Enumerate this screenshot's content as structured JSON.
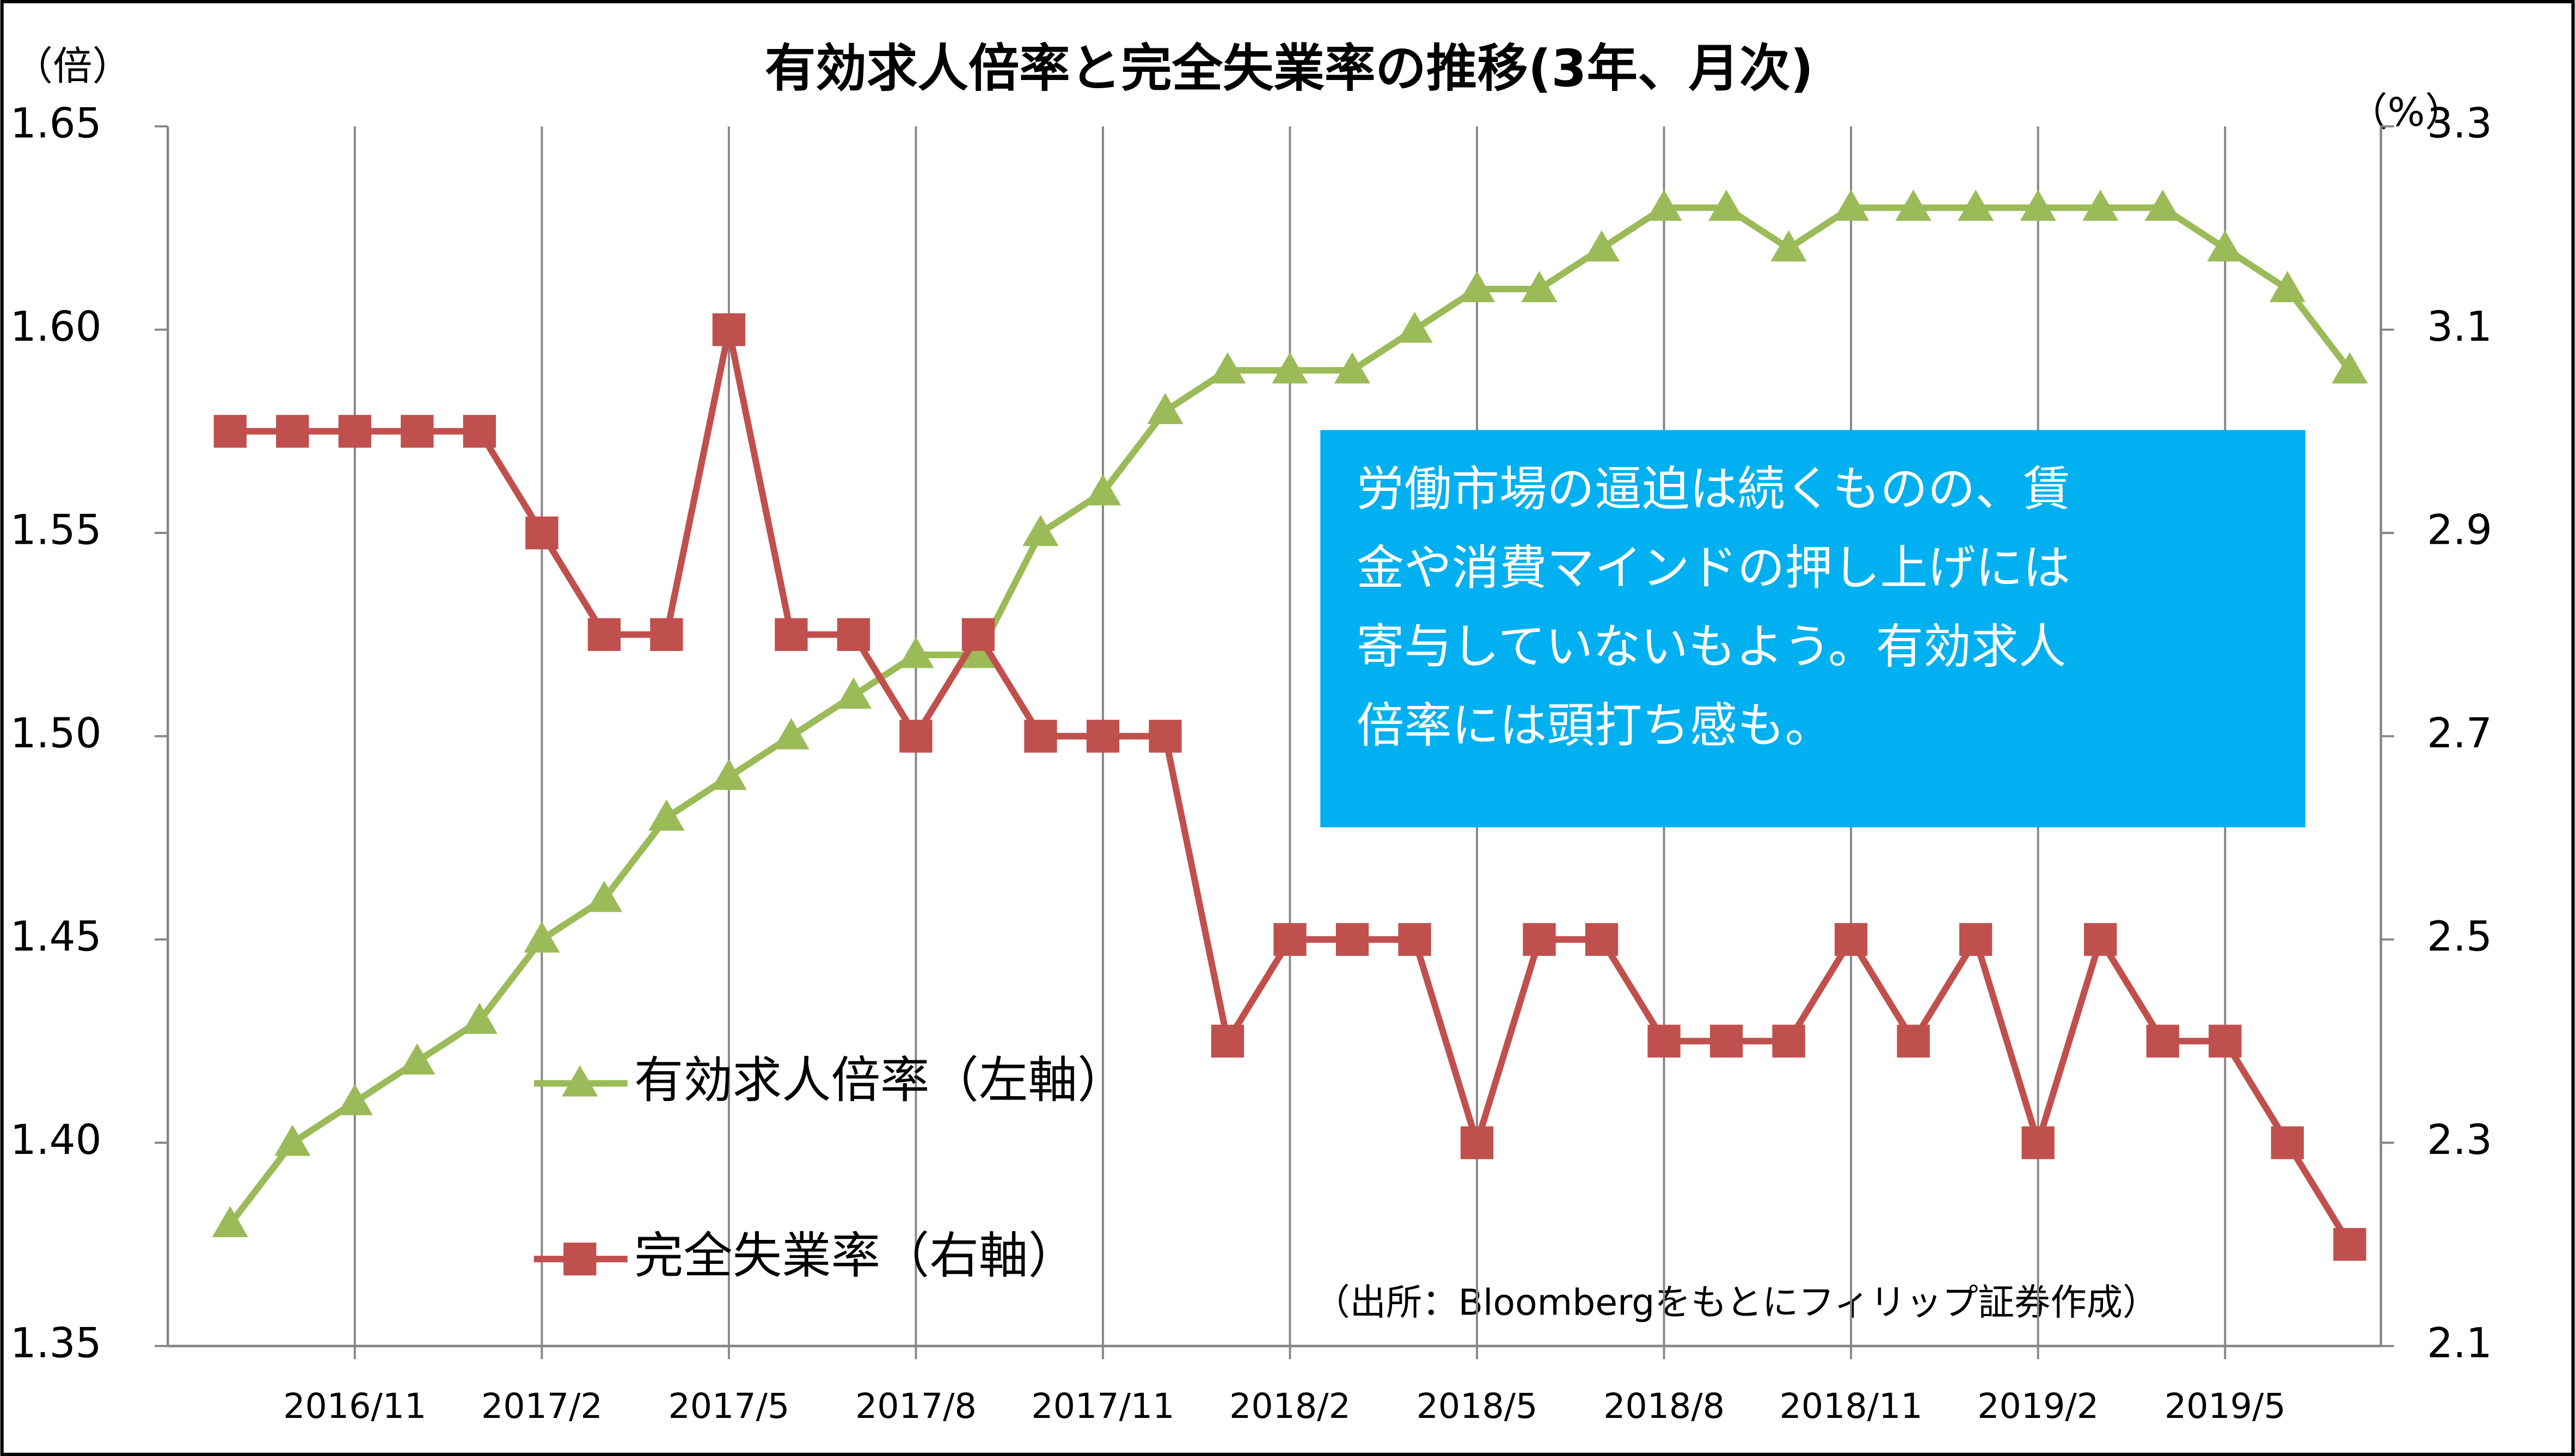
{
  "chart_data": {
    "type": "line",
    "title": "有効求人倍率と完全失業率の推移(3年、月次)",
    "y_label": "（倍）",
    "y2_label": "（%）",
    "categories": [
      null,
      null,
      "2016/11",
      null,
      null,
      "2017/2",
      null,
      null,
      "2017/5",
      null,
      null,
      "2017/8",
      null,
      null,
      "2017/11",
      null,
      null,
      "2018/2",
      null,
      null,
      "2018/5",
      null,
      null,
      "2018/8",
      null,
      null,
      "2018/11",
      null,
      null,
      "2019/2",
      null,
      null,
      "2019/5",
      null,
      null
    ],
    "series": [
      {
        "name": "有効求人倍率（左軸）",
        "color": "#9bbb59",
        "marker": "triangle",
        "axis": "y",
        "values": [
          1.38,
          1.4,
          1.41,
          1.42,
          1.43,
          1.45,
          1.46,
          1.48,
          1.49,
          1.5,
          1.51,
          1.52,
          1.52,
          1.55,
          1.56,
          1.58,
          1.59,
          1.59,
          1.59,
          1.6,
          1.61,
          1.61,
          1.62,
          1.63,
          1.63,
          1.62,
          1.63,
          1.63,
          1.63,
          1.63,
          1.63,
          1.63,
          1.62,
          1.61,
          1.59
        ]
      },
      {
        "name": "完全失業率（右軸）",
        "color": "#c0504d",
        "marker": "square",
        "axis": "y2",
        "values": [
          3.0,
          3.0,
          3.0,
          3.0,
          3.0,
          2.9,
          2.8,
          2.8,
          3.1,
          2.8,
          2.8,
          2.7,
          2.8,
          2.7,
          2.7,
          2.7,
          2.4,
          2.5,
          2.5,
          2.5,
          2.3,
          2.5,
          2.5,
          2.4,
          2.4,
          2.4,
          2.5,
          2.4,
          2.5,
          2.3,
          2.5,
          2.4,
          2.4,
          2.3,
          2.2
        ]
      }
    ],
    "ylim": [
      1.35,
      1.65
    ],
    "yticks": [
      1.35,
      {
        "value": 1.4,
        "label": "1.40"
      },
      1.45,
      {
        "value": 1.5,
        "label": "1.50"
      },
      1.55,
      {
        "value": 1.6,
        "label": "1.60"
      },
      1.65
    ],
    "y2lim": [
      2.1,
      3.3
    ],
    "y2ticks": [
      2.1,
      2.3,
      2.5,
      2.7,
      2.9,
      3.1,
      3.3
    ],
    "grid": "x",
    "annotation": [
      "労働市場の逼迫は続くものの、賃",
      "金や消費マインドの押し上げには",
      "寄与していないもよう。有効求人",
      "倍率には頭打ち感も。"
    ],
    "annotation_color": "#00b0f0",
    "source": "（出所：Bloombergをもとにフィリップ証券作成）"
  }
}
